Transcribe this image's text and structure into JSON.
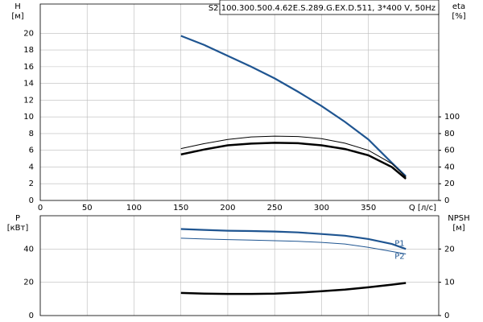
{
  "chart_data": [
    {
      "type": "line",
      "title": "S2.100.300.500.4.62E.S.289.G.EX.D.511, 3*400 V, 50Hz",
      "ylabel": [
        "H",
        "[м]"
      ],
      "y2label": [
        "eta",
        "[%]"
      ],
      "xlabel": "Q [л/с]",
      "x": [
        150,
        175,
        200,
        225,
        250,
        275,
        300,
        325,
        350,
        375,
        390
      ],
      "xlim": [
        0,
        425
      ],
      "xticks": [
        0,
        50,
        100,
        150,
        200,
        250,
        300,
        350
      ],
      "ylim": [
        0,
        23.5
      ],
      "yticks": [
        0,
        2,
        4,
        6,
        8,
        10,
        12,
        14,
        16,
        18,
        20
      ],
      "y2lim": [
        0,
        235
      ],
      "y2ticks": [
        0,
        20,
        40,
        60,
        80,
        100
      ],
      "grid": true,
      "series": [
        {
          "color": "#1f5591",
          "linewidth": 2.2,
          "values": [
            19.7,
            18.6,
            17.3,
            16.0,
            14.6,
            13.0,
            11.3,
            9.4,
            7.3,
            4.5,
            2.9
          ]
        },
        {
          "color": "#000000",
          "linewidth": 1,
          "axis": "y2",
          "values": [
            62,
            68,
            73,
            76,
            77,
            76.5,
            74,
            68.5,
            60,
            44,
            28
          ]
        },
        {
          "color": "#000000",
          "linewidth": 2.5,
          "axis": "y2",
          "values": [
            55,
            61,
            66,
            68,
            69,
            68.5,
            66,
            61.5,
            54,
            40,
            26
          ]
        }
      ]
    },
    {
      "type": "line",
      "ylabel": [
        "P",
        "[кВт]"
      ],
      "y2label": [
        "NPSH",
        "[м]"
      ],
      "x": [
        150,
        175,
        200,
        225,
        250,
        275,
        300,
        325,
        350,
        375,
        390
      ],
      "xlim": [
        0,
        425
      ],
      "xticks": [
        0,
        50,
        100,
        150,
        200,
        250,
        300,
        350
      ],
      "ylim": [
        0,
        60
      ],
      "yticks": [
        0,
        20,
        40
      ],
      "y2lim": [
        0,
        30
      ],
      "y2ticks": [
        0,
        10,
        20
      ],
      "grid": true,
      "series": [
        {
          "name": "P1",
          "color": "#1f5591",
          "linewidth": 2.2,
          "values": [
            52,
            51.5,
            51,
            50.8,
            50.5,
            50,
            49,
            48,
            46,
            43,
            40
          ]
        },
        {
          "name": "P2",
          "color": "#1f5591",
          "linewidth": 1,
          "values": [
            46.5,
            46,
            45.7,
            45.4,
            45,
            44.6,
            44,
            43,
            41,
            38.5,
            37
          ]
        },
        {
          "color": "#000000",
          "linewidth": 2.5,
          "axis": "y2",
          "values": [
            6.8,
            6.6,
            6.5,
            6.5,
            6.6,
            6.9,
            7.3,
            7.8,
            8.5,
            9.3,
            9.8
          ]
        }
      ]
    }
  ]
}
